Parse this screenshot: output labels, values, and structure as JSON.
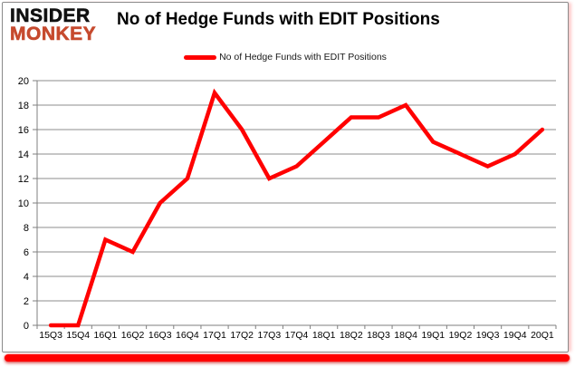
{
  "brand": {
    "line1": "INSIDER",
    "line2": "MONKEY"
  },
  "header": {
    "title": "No of Hedge Funds with EDIT Positions"
  },
  "legend": {
    "label": "No of Hedge Funds with EDIT Positions"
  },
  "colors": {
    "line": "#FF0000",
    "logo_red": "#C64A2E",
    "grid": "#8C8C8C",
    "axis": "#7F7F7F",
    "accent_bar": "#FF0000",
    "border": "#8A8A8A",
    "text": "#000000"
  },
  "chart_data": {
    "type": "line",
    "title": "No of Hedge Funds with EDIT Positions",
    "categories": [
      "15Q3",
      "15Q4",
      "16Q1",
      "16Q2",
      "16Q3",
      "16Q4",
      "17Q1",
      "17Q2",
      "17Q3",
      "17Q4",
      "18Q1",
      "18Q2",
      "18Q3",
      "18Q4",
      "19Q1",
      "19Q2",
      "19Q3",
      "19Q4",
      "20Q1"
    ],
    "series": [
      {
        "name": "No of Hedge Funds with EDIT Positions",
        "values": [
          0,
          0,
          7,
          6,
          10,
          12,
          19,
          16,
          12,
          13,
          15,
          17,
          17,
          18,
          15,
          14,
          13,
          14,
          16
        ]
      }
    ],
    "xlabel": "",
    "ylabel": "",
    "ylim": [
      0,
      20
    ],
    "y_ticks": [
      0,
      2,
      4,
      6,
      8,
      10,
      12,
      14,
      16,
      18,
      20
    ],
    "grid": "horizontal",
    "legend_position": "top-center"
  }
}
